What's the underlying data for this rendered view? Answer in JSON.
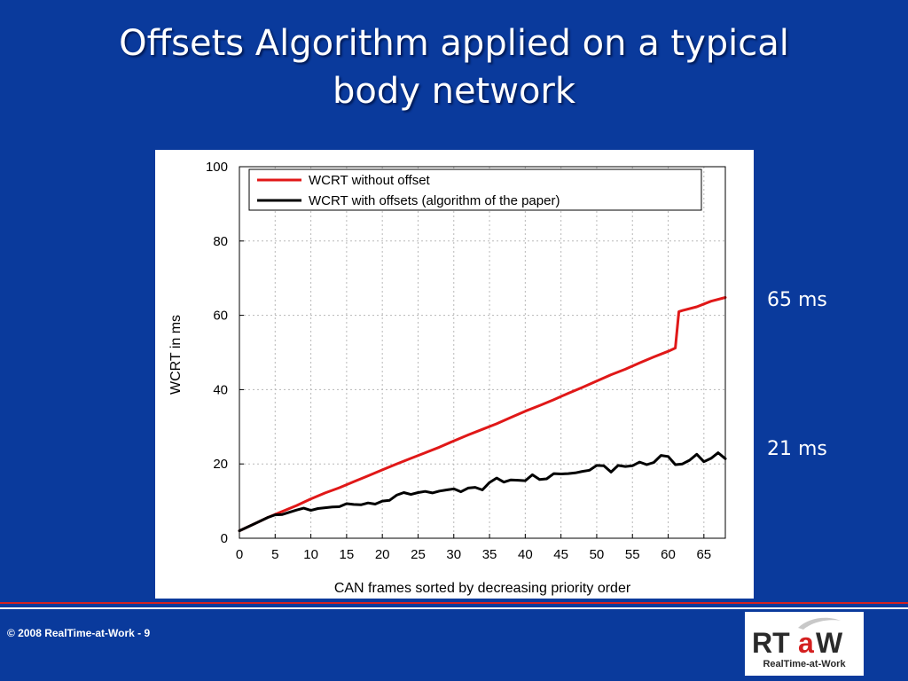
{
  "slide": {
    "title_line1": "Offsets Algorithm applied on a typical",
    "title_line2": "body network",
    "annotation_top": "65 ms",
    "annotation_bottom": "21 ms",
    "footer": "© 2008 RealTime-at-Work - 9"
  },
  "logo": {
    "mark_rt": "RT",
    "mark_a": "a",
    "mark_w": "W",
    "caption": "RealTime-at-Work"
  },
  "colors": {
    "background": "#0a3a9c",
    "series_without_offset": "#e01818",
    "series_with_offsets": "#000000"
  },
  "chart_data": {
    "type": "line",
    "xlabel": "CAN frames sorted by decreasing priority order",
    "ylabel": "WCRT in ms",
    "xlim": [
      0,
      68
    ],
    "ylim": [
      0,
      100
    ],
    "xticks": [
      0,
      5,
      10,
      15,
      20,
      25,
      30,
      35,
      40,
      45,
      50,
      55,
      60,
      65
    ],
    "yticks": [
      0,
      20,
      40,
      60,
      80,
      100
    ],
    "grid": true,
    "legend_position": "top",
    "series": [
      {
        "name": "WCRT without offset",
        "color": "#e01818",
        "x": [
          0,
          2,
          4,
          6,
          8,
          10,
          12,
          14,
          16,
          18,
          20,
          22,
          24,
          26,
          28,
          30,
          32,
          34,
          36,
          38,
          40,
          42,
          44,
          46,
          48,
          50,
          52,
          54,
          56,
          58,
          60,
          61,
          61.5,
          62,
          64,
          66,
          68
        ],
        "values": [
          2,
          3.8,
          5.6,
          7.2,
          8.8,
          10.6,
          12.2,
          13.6,
          15.2,
          16.8,
          18.4,
          20,
          21.5,
          23,
          24.5,
          26.2,
          27.8,
          29.3,
          30.8,
          32.5,
          34.2,
          35.7,
          37.3,
          39,
          40.6,
          42.3,
          44,
          45.5,
          47.2,
          48.8,
          50.3,
          51.2,
          61,
          61.3,
          62.3,
          63.8,
          64.8
        ]
      },
      {
        "name": "WCRT with offsets (algorithm of the paper)",
        "color": "#000000",
        "x": [
          0,
          2,
          4,
          5,
          6,
          7,
          8,
          9,
          10,
          11,
          12,
          13,
          14,
          15,
          16,
          17,
          18,
          19,
          20,
          21,
          22,
          23,
          24,
          25,
          26,
          27,
          28,
          29,
          30,
          31,
          32,
          33,
          34,
          35,
          36,
          37,
          38,
          39,
          40,
          41,
          42,
          43,
          44,
          45,
          46,
          47,
          48,
          49,
          50,
          51,
          52,
          53,
          54,
          55,
          56,
          57,
          58,
          59,
          60,
          61,
          62,
          63,
          64,
          65,
          66,
          67,
          68
        ],
        "values": [
          2,
          3.8,
          5.6,
          6.3,
          6.4,
          7,
          7.6,
          8.1,
          7.5,
          8,
          8.2,
          8.4,
          8.5,
          9.3,
          9.1,
          9,
          9.5,
          9.2,
          10,
          10.2,
          11.6,
          12.3,
          11.8,
          12.3,
          12.6,
          12.2,
          12.7,
          13,
          13.3,
          12.5,
          13.5,
          13.7,
          13,
          15,
          16.2,
          15.1,
          15.7,
          15.6,
          15.5,
          17.1,
          15.8,
          16,
          17.4,
          17.3,
          17.4,
          17.6,
          18,
          18.3,
          19.6,
          19.5,
          17.8,
          19.6,
          19.3,
          19.5,
          20.5,
          19.8,
          20.4,
          22.3,
          22,
          19.8,
          20,
          21,
          22.6,
          20.6,
          21.5,
          23,
          21.4
        ]
      }
    ]
  }
}
